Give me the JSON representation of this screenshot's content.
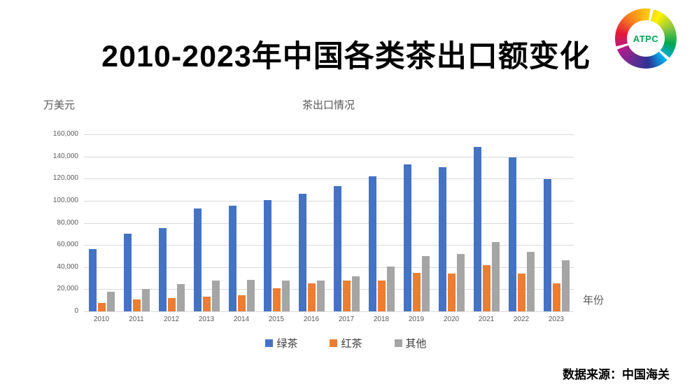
{
  "title": "2010-2023年中国各类茶出口额变化",
  "logo": {
    "text": "ATPC"
  },
  "chart": {
    "unit_label": "万美元",
    "chart_title": "茶出口情况",
    "x_axis_label": "年份",
    "source": "数据来源：中国海关"
  },
  "colors": {
    "green_tea": "#4472C4",
    "black_tea": "#ED7D31",
    "other": "#A5A5A5",
    "gridline": "#D9D9D9",
    "axis_text": "#595959"
  },
  "chart_data": {
    "type": "bar",
    "title": "茶出口情况",
    "xlabel": "年份",
    "ylabel": "万美元",
    "ylim": [
      0,
      160000
    ],
    "ytick_step": 20000,
    "grid": true,
    "legend_position": "bottom",
    "categories": [
      "2010",
      "2011",
      "2012",
      "2013",
      "2014",
      "2015",
      "2016",
      "2017",
      "2018",
      "2019",
      "2020",
      "2021",
      "2022",
      "2023"
    ],
    "series": [
      {
        "name": "绿茶",
        "key": "green-tea",
        "color": "#4472C4",
        "values": [
          56500,
          70500,
          75500,
          93000,
          95300,
          100700,
          106300,
          113300,
          122300,
          132800,
          130500,
          148700,
          139200,
          119300
        ]
      },
      {
        "name": "红茶",
        "key": "black-tea",
        "color": "#ED7D31",
        "values": [
          7900,
          10600,
          11900,
          13000,
          14400,
          20600,
          25400,
          27700,
          27900,
          35000,
          34300,
          41500,
          34100,
          25600
        ]
      },
      {
        "name": "其他",
        "key": "other",
        "color": "#A5A5A5",
        "values": [
          17900,
          20100,
          24700,
          28100,
          28300,
          27600,
          28100,
          31900,
          40500,
          49900,
          52100,
          62600,
          53600,
          46300
        ]
      }
    ]
  }
}
